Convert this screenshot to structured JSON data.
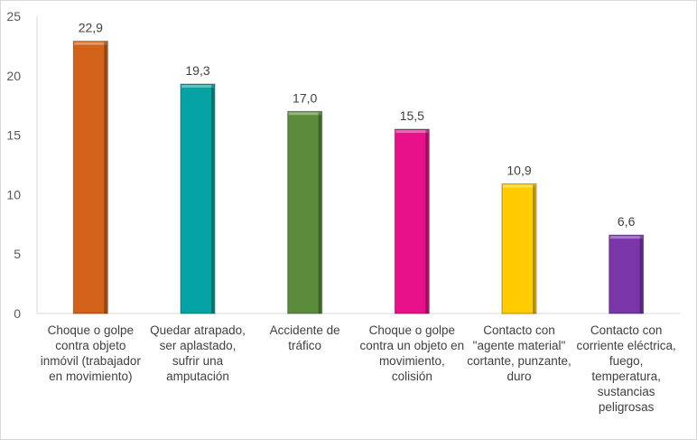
{
  "chart_data": {
    "type": "bar",
    "title": "",
    "xlabel": "",
    "ylabel": "",
    "ylim": [
      0,
      25
    ],
    "yticks": [
      "0",
      "5",
      "10",
      "15",
      "20",
      "25"
    ],
    "grid": false,
    "categories": [
      "Choque o golpe contra objeto inmóvil (trabajador en movimiento)",
      "Quedar atrapado, ser aplastado, sufrir una amputación",
      "Accidente de tráfico",
      "Choque o golpe contra un objeto en movimiento, colisión",
      "Contacto con \"agente material\" cortante, punzante, duro",
      "Contacto con corriente eléctrica, fuego, temperatura, sustancias peligrosas"
    ],
    "values": [
      22.9,
      19.3,
      17.0,
      15.5,
      10.9,
      6.6
    ],
    "data_labels": [
      "22,9",
      "19,3",
      "17,0",
      "15,5",
      "10,9",
      "6,6"
    ],
    "colors": [
      "#D2621A",
      "#05A3A3",
      "#5B8C3C",
      "#E8118A",
      "#FFCC00",
      "#7A35A8"
    ]
  }
}
